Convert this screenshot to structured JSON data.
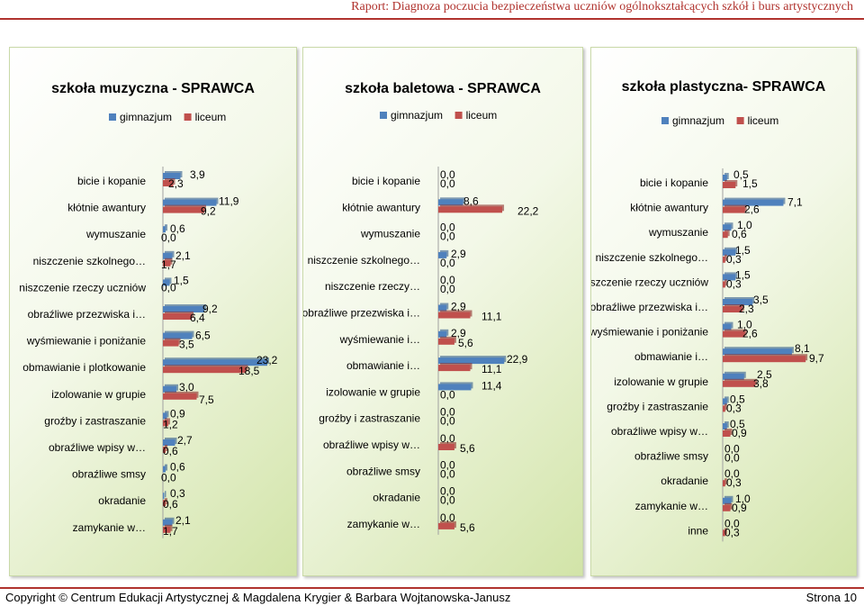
{
  "header": {
    "title": "Raport: Diagnoza poczucia bezpieczeństwa uczniów ogólnokształcących szkół i burs artystycznych"
  },
  "footer": {
    "copyright": "Copyright © Centrum Edukacji Artystycznej & Magdalena Krygier & Barbara Wojtanowska-Janusz",
    "page": "Strona 10"
  },
  "colors": {
    "gimnazjum": "#4f81bd",
    "liceum": "#c0504d"
  },
  "chart_data": [
    {
      "type": "bar",
      "title": "szkoła muzyczna - SPRAWCA",
      "categories": [
        "bicie i kopanie",
        "kłótnie awantury",
        "wymuszanie",
        "niszczenie szkolnego…",
        "niszczenie rzeczy uczniów",
        "obraźliwe przezwiska i…",
        "wyśmiewanie i poniżanie",
        "obmawianie i plotkowanie",
        "izolowanie w grupie",
        "groźby i zastraszanie",
        "obraźliwe wpisy w…",
        "obraźliwe smsy",
        "okradanie",
        "zamykanie w…"
      ],
      "series": [
        {
          "name": "gimnazjum",
          "values": [
            3.9,
            11.9,
            0.6,
            2.1,
            1.5,
            9.2,
            6.5,
            23.2,
            3.0,
            0.9,
            2.7,
            0.6,
            0.3,
            2.1
          ]
        },
        {
          "name": "liceum",
          "values": [
            2.3,
            9.2,
            0.0,
            1.7,
            0.0,
            6.4,
            3.5,
            18.5,
            7.5,
            1.2,
            0.6,
            0.0,
            0.6,
            1.7
          ]
        }
      ]
    },
    {
      "type": "bar",
      "title": "szkoła baletowa - SPRAWCA",
      "categories": [
        "bicie i kopanie",
        "kłótnie awantury",
        "wymuszanie",
        "niszczenie szkolnego…",
        "niszczenie rzeczy…",
        "obraźliwe przezwiska i…",
        "wyśmiewanie i…",
        "obmawianie i…",
        "izolowanie w grupie",
        "groźby i zastraszanie",
        "obraźliwe wpisy w…",
        "obraźliwe smsy",
        "okradanie",
        "zamykanie w…"
      ],
      "series": [
        {
          "name": "gimnazjum",
          "values": [
            0.0,
            8.6,
            0.0,
            2.9,
            0.0,
            2.9,
            2.9,
            22.9,
            11.4,
            0.0,
            0.0,
            0.0,
            0.0,
            0.0
          ]
        },
        {
          "name": "liceum",
          "values": [
            0.0,
            22.2,
            0.0,
            0.0,
            0.0,
            11.1,
            5.6,
            11.1,
            0.0,
            0.0,
            5.6,
            0.0,
            0.0,
            5.6
          ]
        }
      ]
    },
    {
      "type": "bar",
      "title": "szkoła plastyczna- SPRAWCA",
      "categories": [
        "bicie i kopanie",
        "kłótnie awantury",
        "wymuszanie",
        "niszczenie szkolnego…",
        "niszczenie rzeczy uczniów",
        "obraźliwe przezwiska i…",
        "wyśmiewanie i poniżanie",
        "obmawianie i…",
        "izolowanie w grupie",
        "groźby i zastraszanie",
        "obraźliwe wpisy w…",
        "obraźliwe smsy",
        "okradanie",
        "zamykanie w…",
        "inne"
      ],
      "series": [
        {
          "name": "gimnazjum",
          "values": [
            0.5,
            7.1,
            1.0,
            1.5,
            1.5,
            3.5,
            1.0,
            8.1,
            2.5,
            0.5,
            0.5,
            0.0,
            0.0,
            1.0,
            0.0
          ]
        },
        {
          "name": "liceum",
          "values": [
            1.5,
            2.6,
            0.6,
            0.3,
            0.3,
            2.3,
            2.6,
            9.7,
            3.8,
            0.3,
            0.9,
            0.0,
            0.3,
            0.9,
            0.3
          ]
        }
      ]
    }
  ]
}
